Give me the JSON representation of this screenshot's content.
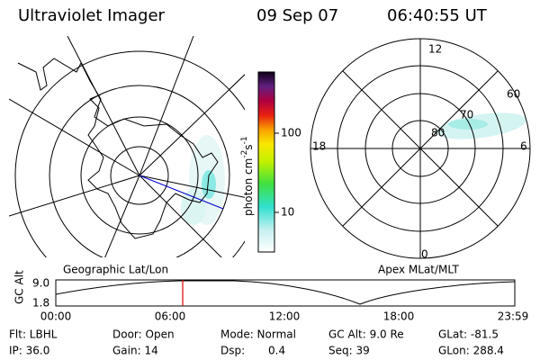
{
  "header": {
    "title": "Ultraviolet Imager",
    "date": "09 Sep 07",
    "time": "06:40:55 UT"
  },
  "colorbar": {
    "label": "photon cm",
    "exp1": "-2",
    "unit2": "s",
    "exp2": "-1",
    "ticks": [
      "100",
      "10"
    ]
  },
  "left_map": {
    "caption": "Geographic Lat/Lon"
  },
  "right_map": {
    "caption": "Apex MLat/MLT",
    "mlt_labels": [
      "12",
      "18",
      "6",
      "0"
    ],
    "mlat_labels": [
      "60",
      "70",
      "80"
    ]
  },
  "timeline": {
    "label": "GC Alt",
    "y_labels": [
      "9.0",
      "1.8"
    ],
    "x_labels": [
      "00:00",
      "06:00",
      "12:00",
      "18:00",
      "23:59"
    ]
  },
  "info": {
    "rows": [
      [
        "Flt: LBHL",
        "Door: Open",
        "Mode: Normal",
        "GC Alt: 9.0 Re",
        "GLat: -81.5"
      ],
      [
        "IP: 36.0",
        "Gain: 14",
        "Dsp:",
        "Seq: 39",
        "GLon: 288.4"
      ]
    ],
    "dsp_value": "0.4"
  }
}
